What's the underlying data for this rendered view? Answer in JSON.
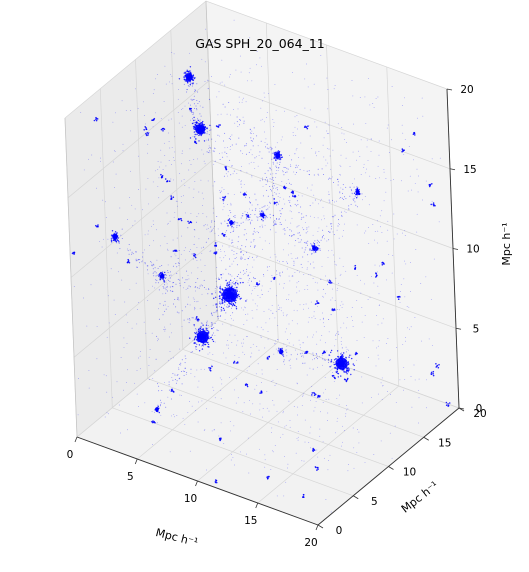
{
  "chart_data": {
    "type": "scatter",
    "projection": "3d",
    "title": "GAS SPH_20_064_11",
    "xlabel": "Mpc h⁻¹",
    "ylabel": "Mpc h⁻¹",
    "zlabel": "Mpc h⁻¹",
    "xlim": [
      0,
      20
    ],
    "ylim": [
      0,
      20
    ],
    "zlim": [
      0,
      20
    ],
    "x_ticks": [
      "0",
      "5",
      "10",
      "15",
      "20"
    ],
    "y_ticks": [
      "0",
      "5",
      "10",
      "15",
      "20"
    ],
    "z_ticks": [
      "0",
      "5",
      "10",
      "15",
      "20"
    ],
    "grid": true,
    "point_color": "#0000ff",
    "clusters": [
      {
        "x": 2.0,
        "y": 14.0,
        "z": 18.0,
        "weight": 1.4
      },
      {
        "x": 4.0,
        "y": 12.0,
        "z": 16.0,
        "weight": 2.0
      },
      {
        "x": 7.5,
        "y": 9.5,
        "z": 7.5,
        "weight": 3.0
      },
      {
        "x": 6.0,
        "y": 8.0,
        "z": 5.0,
        "weight": 2.4
      },
      {
        "x": 17.0,
        "y": 9.0,
        "z": 6.0,
        "weight": 2.4
      },
      {
        "x": 2.0,
        "y": 3.0,
        "z": 12.0,
        "weight": 1.0
      },
      {
        "x": 8.0,
        "y": 16.0,
        "z": 14.0,
        "weight": 1.0
      },
      {
        "x": 4.0,
        "y": 6.0,
        "z": 9.0,
        "weight": 0.8
      },
      {
        "x": 12.0,
        "y": 14.0,
        "z": 10.0,
        "weight": 0.8
      },
      {
        "x": 10.0,
        "y": 6.0,
        "z": 14.0,
        "weight": 0.7
      },
      {
        "x": 15.0,
        "y": 4.0,
        "z": 8.0,
        "weight": 0.7
      },
      {
        "x": 14.0,
        "y": 17.0,
        "z": 13.0,
        "weight": 0.7
      },
      {
        "x": 5.0,
        "y": 3.0,
        "z": 2.0,
        "weight": 0.6
      },
      {
        "x": 9.0,
        "y": 12.0,
        "z": 12.0,
        "weight": 0.6
      }
    ]
  }
}
